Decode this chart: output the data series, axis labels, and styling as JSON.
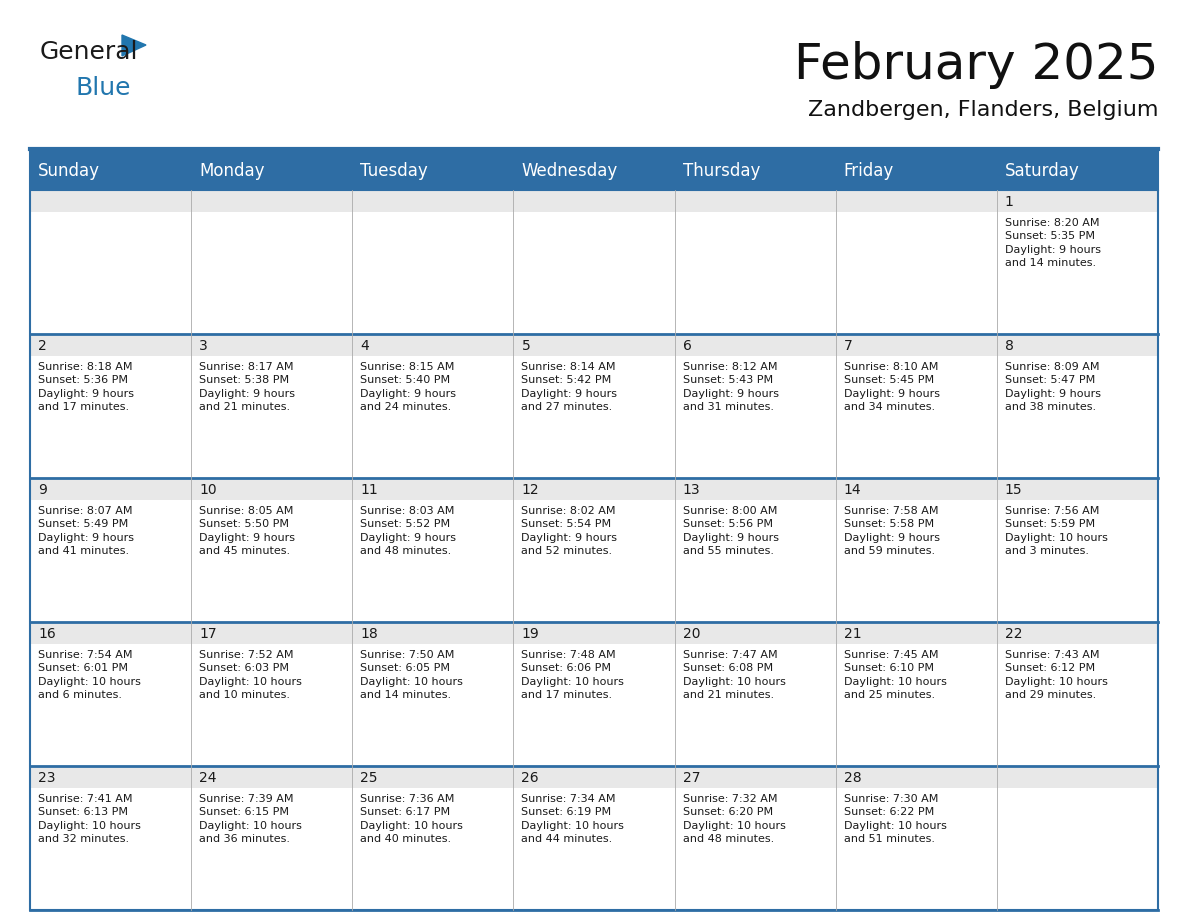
{
  "title": "February 2025",
  "subtitle": "Zandbergen, Flanders, Belgium",
  "header_bg": "#2E6DA4",
  "header_text_color": "#FFFFFF",
  "cell_top_bg": "#E8E8E8",
  "cell_body_bg": "#FFFFFF",
  "border_color": "#2E6DA4",
  "row_separator_color": "#2E6DA4",
  "text_color_dark": "#1a1a1a",
  "day_num_color": "#2E6DA4",
  "day_headers": [
    "Sunday",
    "Monday",
    "Tuesday",
    "Wednesday",
    "Thursday",
    "Friday",
    "Saturday"
  ],
  "days_data": [
    {
      "day": 1,
      "col": 6,
      "row": 0,
      "sunrise": "8:20 AM",
      "sunset": "5:35 PM",
      "daylight_h": "9 hours",
      "daylight_m": "14 minutes."
    },
    {
      "day": 2,
      "col": 0,
      "row": 1,
      "sunrise": "8:18 AM",
      "sunset": "5:36 PM",
      "daylight_h": "9 hours",
      "daylight_m": "17 minutes."
    },
    {
      "day": 3,
      "col": 1,
      "row": 1,
      "sunrise": "8:17 AM",
      "sunset": "5:38 PM",
      "daylight_h": "9 hours",
      "daylight_m": "21 minutes."
    },
    {
      "day": 4,
      "col": 2,
      "row": 1,
      "sunrise": "8:15 AM",
      "sunset": "5:40 PM",
      "daylight_h": "9 hours",
      "daylight_m": "24 minutes."
    },
    {
      "day": 5,
      "col": 3,
      "row": 1,
      "sunrise": "8:14 AM",
      "sunset": "5:42 PM",
      "daylight_h": "9 hours",
      "daylight_m": "27 minutes."
    },
    {
      "day": 6,
      "col": 4,
      "row": 1,
      "sunrise": "8:12 AM",
      "sunset": "5:43 PM",
      "daylight_h": "9 hours",
      "daylight_m": "31 minutes."
    },
    {
      "day": 7,
      "col": 5,
      "row": 1,
      "sunrise": "8:10 AM",
      "sunset": "5:45 PM",
      "daylight_h": "9 hours",
      "daylight_m": "34 minutes."
    },
    {
      "day": 8,
      "col": 6,
      "row": 1,
      "sunrise": "8:09 AM",
      "sunset": "5:47 PM",
      "daylight_h": "9 hours",
      "daylight_m": "38 minutes."
    },
    {
      "day": 9,
      "col": 0,
      "row": 2,
      "sunrise": "8:07 AM",
      "sunset": "5:49 PM",
      "daylight_h": "9 hours",
      "daylight_m": "41 minutes."
    },
    {
      "day": 10,
      "col": 1,
      "row": 2,
      "sunrise": "8:05 AM",
      "sunset": "5:50 PM",
      "daylight_h": "9 hours",
      "daylight_m": "45 minutes."
    },
    {
      "day": 11,
      "col": 2,
      "row": 2,
      "sunrise": "8:03 AM",
      "sunset": "5:52 PM",
      "daylight_h": "9 hours",
      "daylight_m": "48 minutes."
    },
    {
      "day": 12,
      "col": 3,
      "row": 2,
      "sunrise": "8:02 AM",
      "sunset": "5:54 PM",
      "daylight_h": "9 hours",
      "daylight_m": "52 minutes."
    },
    {
      "day": 13,
      "col": 4,
      "row": 2,
      "sunrise": "8:00 AM",
      "sunset": "5:56 PM",
      "daylight_h": "9 hours",
      "daylight_m": "55 minutes."
    },
    {
      "day": 14,
      "col": 5,
      "row": 2,
      "sunrise": "7:58 AM",
      "sunset": "5:58 PM",
      "daylight_h": "9 hours",
      "daylight_m": "59 minutes."
    },
    {
      "day": 15,
      "col": 6,
      "row": 2,
      "sunrise": "7:56 AM",
      "sunset": "5:59 PM",
      "daylight_h": "10 hours",
      "daylight_m": "3 minutes."
    },
    {
      "day": 16,
      "col": 0,
      "row": 3,
      "sunrise": "7:54 AM",
      "sunset": "6:01 PM",
      "daylight_h": "10 hours",
      "daylight_m": "6 minutes."
    },
    {
      "day": 17,
      "col": 1,
      "row": 3,
      "sunrise": "7:52 AM",
      "sunset": "6:03 PM",
      "daylight_h": "10 hours",
      "daylight_m": "10 minutes."
    },
    {
      "day": 18,
      "col": 2,
      "row": 3,
      "sunrise": "7:50 AM",
      "sunset": "6:05 PM",
      "daylight_h": "10 hours",
      "daylight_m": "14 minutes."
    },
    {
      "day": 19,
      "col": 3,
      "row": 3,
      "sunrise": "7:48 AM",
      "sunset": "6:06 PM",
      "daylight_h": "10 hours",
      "daylight_m": "17 minutes."
    },
    {
      "day": 20,
      "col": 4,
      "row": 3,
      "sunrise": "7:47 AM",
      "sunset": "6:08 PM",
      "daylight_h": "10 hours",
      "daylight_m": "21 minutes."
    },
    {
      "day": 21,
      "col": 5,
      "row": 3,
      "sunrise": "7:45 AM",
      "sunset": "6:10 PM",
      "daylight_h": "10 hours",
      "daylight_m": "25 minutes."
    },
    {
      "day": 22,
      "col": 6,
      "row": 3,
      "sunrise": "7:43 AM",
      "sunset": "6:12 PM",
      "daylight_h": "10 hours",
      "daylight_m": "29 minutes."
    },
    {
      "day": 23,
      "col": 0,
      "row": 4,
      "sunrise": "7:41 AM",
      "sunset": "6:13 PM",
      "daylight_h": "10 hours",
      "daylight_m": "32 minutes."
    },
    {
      "day": 24,
      "col": 1,
      "row": 4,
      "sunrise": "7:39 AM",
      "sunset": "6:15 PM",
      "daylight_h": "10 hours",
      "daylight_m": "36 minutes."
    },
    {
      "day": 25,
      "col": 2,
      "row": 4,
      "sunrise": "7:36 AM",
      "sunset": "6:17 PM",
      "daylight_h": "10 hours",
      "daylight_m": "40 minutes."
    },
    {
      "day": 26,
      "col": 3,
      "row": 4,
      "sunrise": "7:34 AM",
      "sunset": "6:19 PM",
      "daylight_h": "10 hours",
      "daylight_m": "44 minutes."
    },
    {
      "day": 27,
      "col": 4,
      "row": 4,
      "sunrise": "7:32 AM",
      "sunset": "6:20 PM",
      "daylight_h": "10 hours",
      "daylight_m": "48 minutes."
    },
    {
      "day": 28,
      "col": 5,
      "row": 4,
      "sunrise": "7:30 AM",
      "sunset": "6:22 PM",
      "daylight_h": "10 hours",
      "daylight_m": "51 minutes."
    }
  ],
  "num_rows": 5,
  "logo_text_general": "General",
  "logo_text_blue": "Blue",
  "logo_color_general": "#1a1a1a",
  "logo_color_blue": "#2176AE",
  "logo_triangle_color": "#2176AE",
  "title_fontsize": 36,
  "subtitle_fontsize": 16,
  "header_fontsize": 12,
  "day_num_fontsize": 10,
  "info_fontsize": 8
}
